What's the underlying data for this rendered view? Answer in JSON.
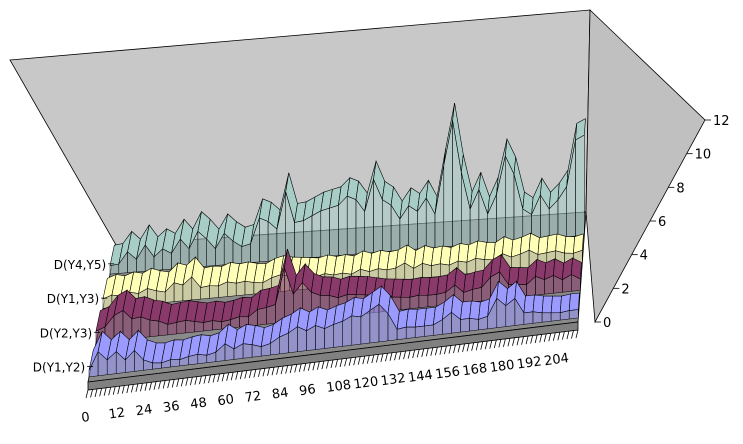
{
  "chart_data": {
    "type": "3d-ribbon-line",
    "title": "",
    "xlabel": "",
    "ylabel": "",
    "zlabel": "",
    "x_tick_labels": [
      "0",
      "12",
      "24",
      "36",
      "48",
      "60",
      "72",
      "84",
      "96",
      "108",
      "120",
      "132",
      "144",
      "156",
      "168",
      "180",
      "192",
      "204"
    ],
    "x_range": [
      0,
      216
    ],
    "z_ticks": [
      0,
      2,
      4,
      6,
      8,
      10,
      12
    ],
    "zlim": [
      0,
      12
    ],
    "grid": false,
    "legend": "none",
    "series": [
      {
        "name": "D(Y1,Y2)",
        "color": "#9a9aff",
        "points": [
          [
            0,
            0.6
          ],
          [
            4,
            2.3
          ],
          [
            8,
            1.4
          ],
          [
            12,
            2.1
          ],
          [
            16,
            1.2
          ],
          [
            20,
            2.0
          ],
          [
            24,
            1.0
          ],
          [
            28,
            0.6
          ],
          [
            32,
            0.5
          ],
          [
            36,
            0.7
          ],
          [
            40,
            0.6
          ],
          [
            44,
            0.8
          ],
          [
            48,
            0.9
          ],
          [
            52,
            0.7
          ],
          [
            56,
            0.9
          ],
          [
            60,
            1.6
          ],
          [
            64,
            1.0
          ],
          [
            68,
            1.4
          ],
          [
            72,
            1.2
          ],
          [
            76,
            0.9
          ],
          [
            80,
            1.1
          ],
          [
            84,
            1.6
          ],
          [
            88,
            1.9
          ],
          [
            92,
            2.4
          ],
          [
            96,
            1.9
          ],
          [
            100,
            2.3
          ],
          [
            104,
            1.9
          ],
          [
            108,
            2.2
          ],
          [
            112,
            2.4
          ],
          [
            116,
            2.8
          ],
          [
            120,
            2.6
          ],
          [
            124,
            3.1
          ],
          [
            128,
            3.6
          ],
          [
            132,
            2.6
          ],
          [
            136,
            1.0
          ],
          [
            140,
            1.1
          ],
          [
            144,
            1.0
          ],
          [
            148,
            1.0
          ],
          [
            152,
            1.0
          ],
          [
            156,
            1.4
          ],
          [
            160,
            2.0
          ],
          [
            164,
            1.2
          ],
          [
            168,
            1.2
          ],
          [
            172,
            1.0
          ],
          [
            176,
            1.2
          ],
          [
            180,
            2.8
          ],
          [
            184,
            2.0
          ],
          [
            188,
            2.6
          ],
          [
            192,
            1.1
          ],
          [
            196,
            1.1
          ],
          [
            200,
            0.9
          ],
          [
            204,
            0.8
          ],
          [
            208,
            0.7
          ],
          [
            212,
            0.8
          ],
          [
            216,
            0.8
          ]
        ]
      },
      {
        "name": "D(Y2,Y3)",
        "color": "#8a3a6a",
        "points": [
          [
            0,
            1.1
          ],
          [
            4,
            1.4
          ],
          [
            8,
            2.4
          ],
          [
            12,
            2.8
          ],
          [
            16,
            1.9
          ],
          [
            20,
            2.0
          ],
          [
            24,
            1.6
          ],
          [
            28,
            1.4
          ],
          [
            32,
            1.0
          ],
          [
            36,
            1.1
          ],
          [
            40,
            1.2
          ],
          [
            44,
            1.0
          ],
          [
            48,
            0.8
          ],
          [
            52,
            0.9
          ],
          [
            56,
            0.7
          ],
          [
            60,
            0.8
          ],
          [
            64,
            1.0
          ],
          [
            68,
            0.9
          ],
          [
            72,
            1.5
          ],
          [
            76,
            1.6
          ],
          [
            80,
            1.8
          ],
          [
            84,
            5.2
          ],
          [
            88,
            2.6
          ],
          [
            92,
            3.6
          ],
          [
            96,
            2.6
          ],
          [
            100,
            2.2
          ],
          [
            104,
            2.1
          ],
          [
            108,
            1.8
          ],
          [
            112,
            2.0
          ],
          [
            116,
            1.9
          ],
          [
            120,
            1.8
          ],
          [
            124,
            1.6
          ],
          [
            128,
            1.4
          ],
          [
            132,
            1.3
          ],
          [
            136,
            1.2
          ],
          [
            140,
            1.1
          ],
          [
            144,
            1.2
          ],
          [
            148,
            1.1
          ],
          [
            152,
            1.1
          ],
          [
            156,
            1.2
          ],
          [
            160,
            1.8
          ],
          [
            164,
            1.0
          ],
          [
            168,
            1.2
          ],
          [
            172,
            1.3
          ],
          [
            176,
            2.2
          ],
          [
            180,
            2.6
          ],
          [
            184,
            1.3
          ],
          [
            188,
            1.2
          ],
          [
            192,
            1.1
          ],
          [
            196,
            1.8
          ],
          [
            200,
            1.4
          ],
          [
            204,
            1.7
          ],
          [
            208,
            1.2
          ],
          [
            212,
            1.6
          ],
          [
            216,
            1.1
          ]
        ]
      },
      {
        "name": "D(Y1,Y3)",
        "color": "#ffffb8",
        "points": [
          [
            0,
            0.9
          ],
          [
            4,
            1.2
          ],
          [
            8,
            1.0
          ],
          [
            12,
            1.3
          ],
          [
            16,
            1.1
          ],
          [
            20,
            1.5
          ],
          [
            24,
            1.2
          ],
          [
            28,
            1.0
          ],
          [
            32,
            1.8
          ],
          [
            36,
            1.5
          ],
          [
            40,
            2.2
          ],
          [
            44,
            1.1
          ],
          [
            48,
            1.2
          ],
          [
            52,
            1.1
          ],
          [
            56,
            1.4
          ],
          [
            60,
            1.2
          ],
          [
            64,
            1.3
          ],
          [
            68,
            1.1
          ],
          [
            72,
            1.0
          ],
          [
            76,
            1.4
          ],
          [
            80,
            1.6
          ],
          [
            84,
            1.4
          ],
          [
            88,
            1.3
          ],
          [
            92,
            1.2
          ],
          [
            96,
            1.1
          ],
          [
            100,
            1.3
          ],
          [
            104,
            1.1
          ],
          [
            108,
            1.2
          ],
          [
            112,
            1.0
          ],
          [
            116,
            1.4
          ],
          [
            120,
            1.1
          ],
          [
            124,
            1.3
          ],
          [
            128,
            1.1
          ],
          [
            132,
            1.2
          ],
          [
            136,
            1.6
          ],
          [
            140,
            1.0
          ],
          [
            144,
            1.4
          ],
          [
            148,
            1.1
          ],
          [
            152,
            1.2
          ],
          [
            156,
            1.0
          ],
          [
            160,
            1.3
          ],
          [
            164,
            1.1
          ],
          [
            168,
            1.4
          ],
          [
            172,
            1.2
          ],
          [
            176,
            1.1
          ],
          [
            180,
            1.6
          ],
          [
            184,
            1.2
          ],
          [
            188,
            1.4
          ],
          [
            192,
            1.7
          ],
          [
            196,
            1.2
          ],
          [
            200,
            1.3
          ],
          [
            204,
            1.4
          ],
          [
            208,
            1.1
          ],
          [
            212,
            1.0
          ],
          [
            216,
            1.2
          ]
        ]
      },
      {
        "name": "D(Y4,Y5)",
        "color": "#a8ccc6",
        "points": [
          [
            0,
            0.8
          ],
          [
            4,
            0.9
          ],
          [
            8,
            2.0
          ],
          [
            12,
            1.2
          ],
          [
            16,
            2.5
          ],
          [
            20,
            1.3
          ],
          [
            24,
            2.0
          ],
          [
            28,
            1.5
          ],
          [
            32,
            2.8
          ],
          [
            36,
            1.8
          ],
          [
            40,
            3.4
          ],
          [
            44,
            2.6
          ],
          [
            48,
            1.6
          ],
          [
            52,
            3.0
          ],
          [
            56,
            2.2
          ],
          [
            60,
            1.6
          ],
          [
            64,
            1.8
          ],
          [
            68,
            4.2
          ],
          [
            72,
            3.8
          ],
          [
            76,
            3.0
          ],
          [
            80,
            6.5
          ],
          [
            84,
            3.5
          ],
          [
            88,
            3.6
          ],
          [
            92,
            4.0
          ],
          [
            96,
            4.4
          ],
          [
            100,
            4.6
          ],
          [
            104,
            4.8
          ],
          [
            108,
            5.6
          ],
          [
            112,
            5.2
          ],
          [
            116,
            4.0
          ],
          [
            120,
            7.0
          ],
          [
            124,
            5.0
          ],
          [
            128,
            4.4
          ],
          [
            132,
            3.0
          ],
          [
            136,
            4.2
          ],
          [
            140,
            3.6
          ],
          [
            144,
            4.8
          ],
          [
            148,
            3.2
          ],
          [
            152,
            7.8
          ],
          [
            156,
            12.0
          ],
          [
            160,
            7.0
          ],
          [
            164,
            3.4
          ],
          [
            168,
            5.2
          ],
          [
            172,
            2.8
          ],
          [
            176,
            4.6
          ],
          [
            180,
            8.2
          ],
          [
            184,
            6.4
          ],
          [
            188,
            3.0
          ],
          [
            192,
            2.4
          ],
          [
            196,
            4.2
          ],
          [
            200,
            2.8
          ],
          [
            204,
            3.6
          ],
          [
            208,
            4.8
          ],
          [
            212,
            9.2
          ],
          [
            216,
            9.6
          ]
        ]
      }
    ]
  }
}
